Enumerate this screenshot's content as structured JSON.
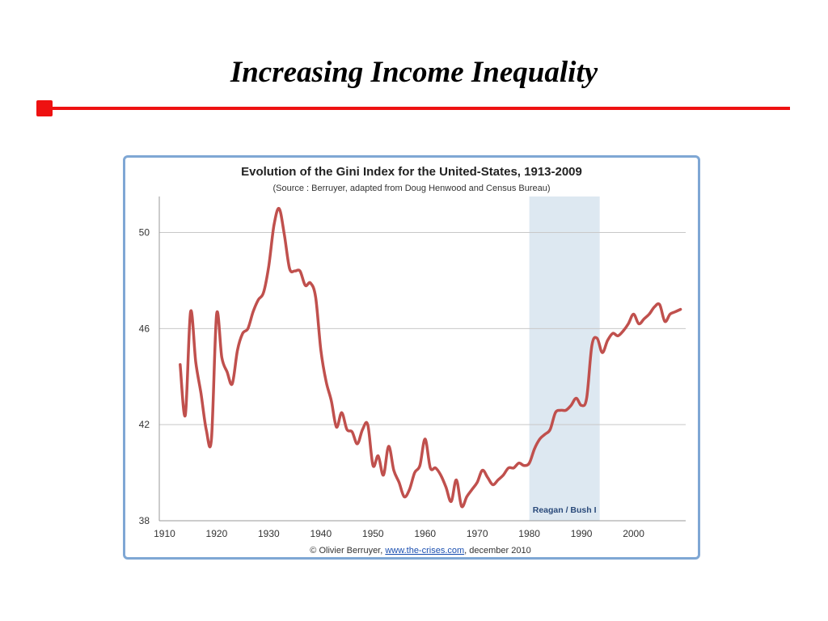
{
  "slide": {
    "title": "Increasing Income Inequality",
    "accent_color": "#ee1111"
  },
  "chart_data": {
    "type": "line",
    "title": "Evolution of the Gini Index for the United-States, 1913-2009",
    "subtitle": "(Source : Berruyer, adapted from Doug Henwood and Census Bureau)",
    "xlabel": "",
    "ylabel": "",
    "xlim": [
      1909,
      2010
    ],
    "ylim": [
      38,
      51.5
    ],
    "x_ticks": [
      1910,
      1920,
      1930,
      1940,
      1950,
      1960,
      1970,
      1980,
      1990,
      2000
    ],
    "y_ticks": [
      38,
      42,
      46,
      50
    ],
    "grid": "horizontal",
    "line_color": "#c0504d",
    "band": {
      "from": 1980,
      "to": 1993.5,
      "label": "Reagan / Bush I",
      "color": "#dde8f1"
    },
    "credit": {
      "prefix": "© Olivier Berruyer,",
      "link": "www.the-crises.com",
      "suffix": ", december 2010"
    },
    "series": [
      {
        "x": [
          1913,
          1914,
          1915,
          1916,
          1917,
          1918,
          1919,
          1920,
          1921,
          1922,
          1923,
          1924,
          1925,
          1926,
          1927,
          1928,
          1929,
          1930,
          1931,
          1932,
          1933,
          1934,
          1935,
          1936,
          1937,
          1938,
          1939,
          1940,
          1941,
          1942,
          1943,
          1944,
          1945,
          1946,
          1947,
          1948,
          1949,
          1950,
          1951,
          1952,
          1953,
          1954,
          1955,
          1956,
          1957,
          1958,
          1959,
          1960,
          1961,
          1962,
          1963,
          1964,
          1965,
          1966,
          1967,
          1968,
          1969,
          1970,
          1971,
          1972,
          1973,
          1974,
          1975,
          1976,
          1977,
          1978,
          1979,
          1980,
          1981,
          1982,
          1983,
          1984,
          1985,
          1986,
          1987,
          1988,
          1989,
          1990,
          1991,
          1992,
          1993,
          1994,
          1995,
          1996,
          1997,
          1998,
          1999,
          2000,
          2001,
          2002,
          2003,
          2004,
          2005,
          2006,
          2007,
          2008,
          2009
        ],
        "values": [
          44.5,
          42.4,
          46.7,
          44.6,
          43.3,
          41.8,
          41.4,
          46.6,
          44.8,
          44.2,
          43.7,
          45.1,
          45.8,
          46.0,
          46.7,
          47.2,
          47.5,
          48.6,
          50.3,
          51.0,
          49.9,
          48.5,
          48.4,
          48.4,
          47.8,
          47.9,
          47.3,
          45.1,
          43.8,
          43.0,
          41.9,
          42.5,
          41.8,
          41.7,
          41.2,
          41.8,
          42.0,
          40.3,
          40.7,
          39.9,
          41.1,
          40.1,
          39.6,
          39.0,
          39.3,
          40.0,
          40.3,
          41.4,
          40.2,
          40.2,
          39.9,
          39.4,
          38.8,
          39.7,
          38.6,
          39.0,
          39.3,
          39.6,
          40.1,
          39.8,
          39.5,
          39.7,
          39.9,
          40.2,
          40.2,
          40.4,
          40.3,
          40.4,
          41.0,
          41.4,
          41.6,
          41.8,
          42.5,
          42.6,
          42.6,
          42.8,
          43.1,
          42.8,
          43.1,
          45.3,
          45.6,
          45.0,
          45.5,
          45.8,
          45.7,
          45.9,
          46.2,
          46.6,
          46.2,
          46.4,
          46.6,
          46.9,
          47.0,
          46.3,
          46.6,
          46.7,
          46.8
        ]
      }
    ]
  }
}
